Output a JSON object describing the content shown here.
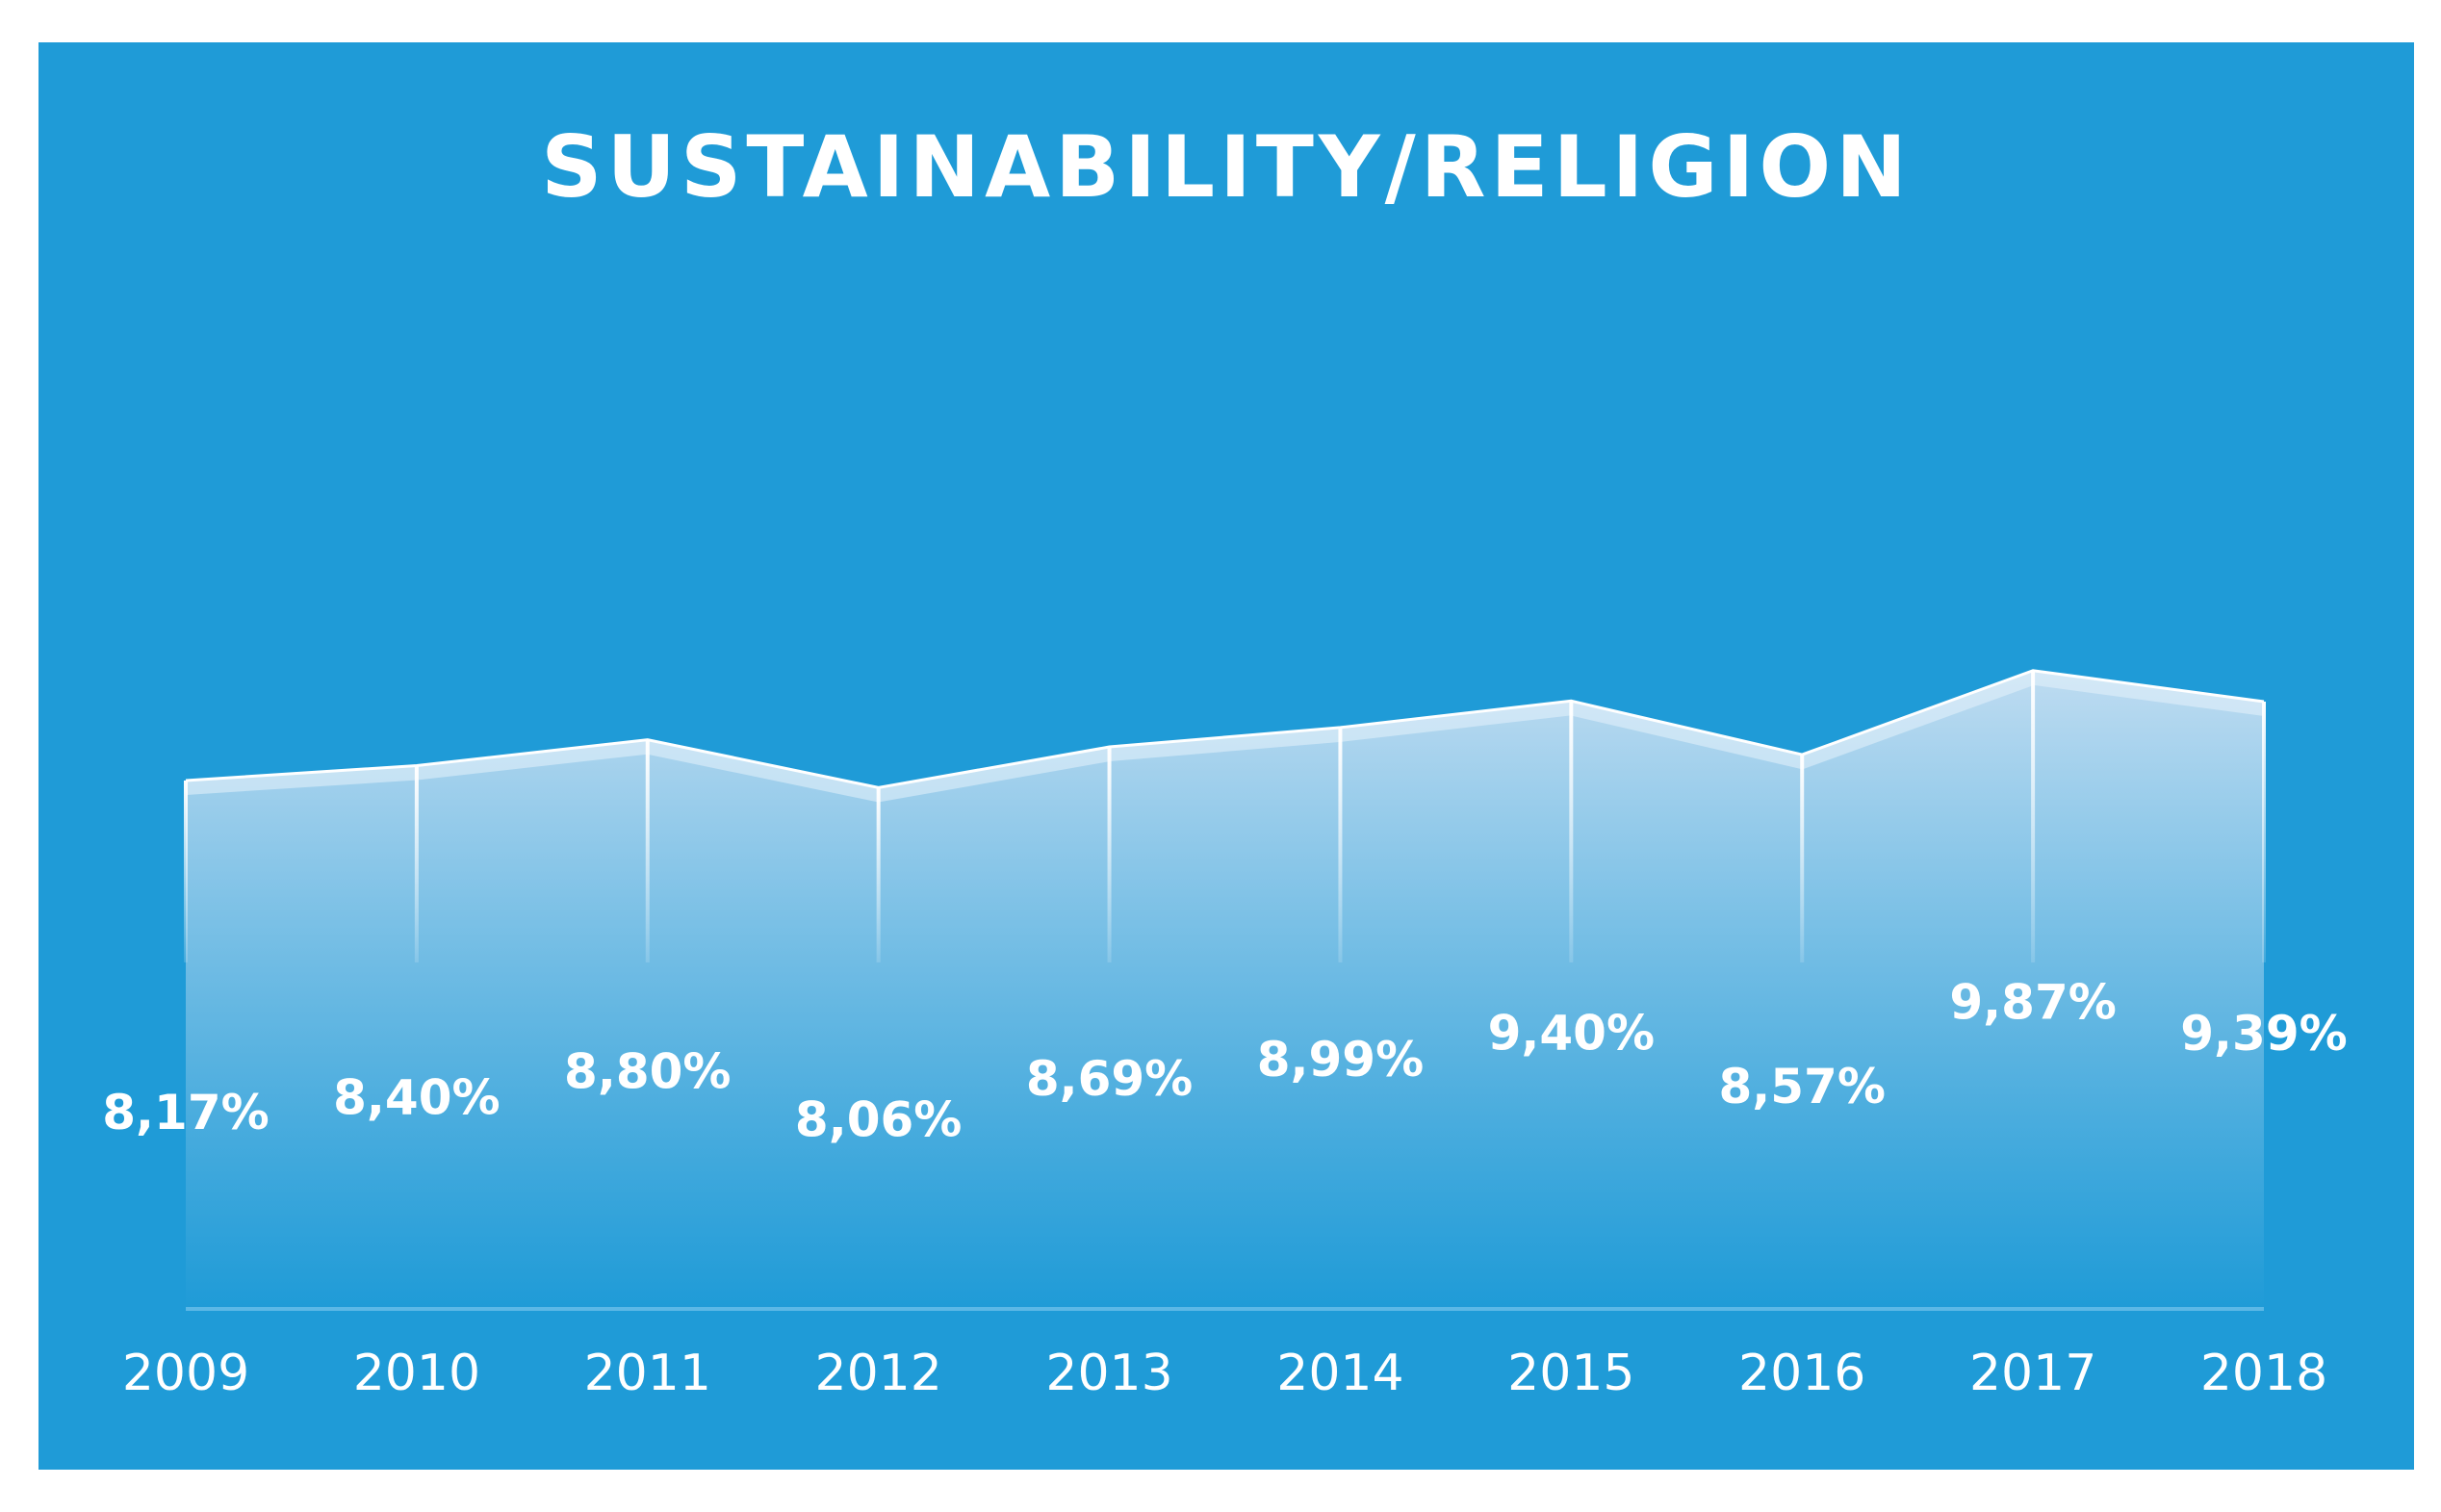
{
  "chart_data": {
    "type": "area",
    "title": "SUSTAINABILITY/RELIGION",
    "categories": [
      "2009",
      "2010",
      "2011",
      "2012",
      "2013",
      "2014",
      "2015",
      "2016",
      "2017",
      "2018"
    ],
    "values": [
      8.17,
      8.4,
      8.8,
      8.06,
      8.69,
      8.99,
      9.4,
      8.57,
      9.87,
      9.39
    ],
    "data_labels": [
      "8,17%",
      "8,40%",
      "8,80%",
      "8,06%",
      "8,69%",
      "8,99%",
      "9,40%",
      "8,57%",
      "9,87%",
      "9,39%"
    ],
    "xlabel": "",
    "ylabel": "",
    "ylim": [
      0,
      10.3
    ],
    "grid": false,
    "legend": "none",
    "colors": {
      "background": "#1f9bd7",
      "fill_top": "#bfdcf1",
      "fill_bottom": "#1f9bd7",
      "line": "#ffffff"
    }
  }
}
